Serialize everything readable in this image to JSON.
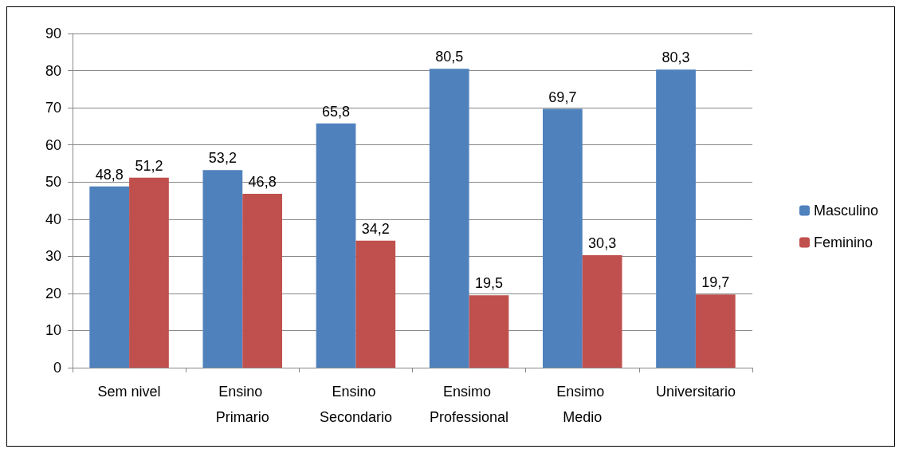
{
  "chart_data": {
    "type": "bar",
    "categories": [
      "Sem nivel",
      "Ensino Primario",
      "Ensino Secondario",
      "Ensimo Professional",
      "Ensimo Medio",
      "Universitario"
    ],
    "series": [
      {
        "name": "Masculino",
        "color": "#4f81bd",
        "values": [
          48.8,
          53.2,
          65.8,
          80.5,
          69.7,
          80.3
        ],
        "value_labels": [
          "48,8",
          "53,2",
          "65,8",
          "80,5",
          "69,7",
          "80,3"
        ]
      },
      {
        "name": "Feminino",
        "color": "#c0504d",
        "values": [
          51.2,
          46.8,
          34.2,
          19.5,
          30.3,
          19.7
        ],
        "value_labels": [
          "51,2",
          "46,8",
          "34,2",
          "19,5",
          "30,3",
          "19,7"
        ]
      }
    ],
    "ylim": [
      0,
      90
    ],
    "yticks": [
      0,
      10,
      20,
      30,
      40,
      50,
      60,
      70,
      80,
      90
    ],
    "grid": "y",
    "legend": "right"
  }
}
